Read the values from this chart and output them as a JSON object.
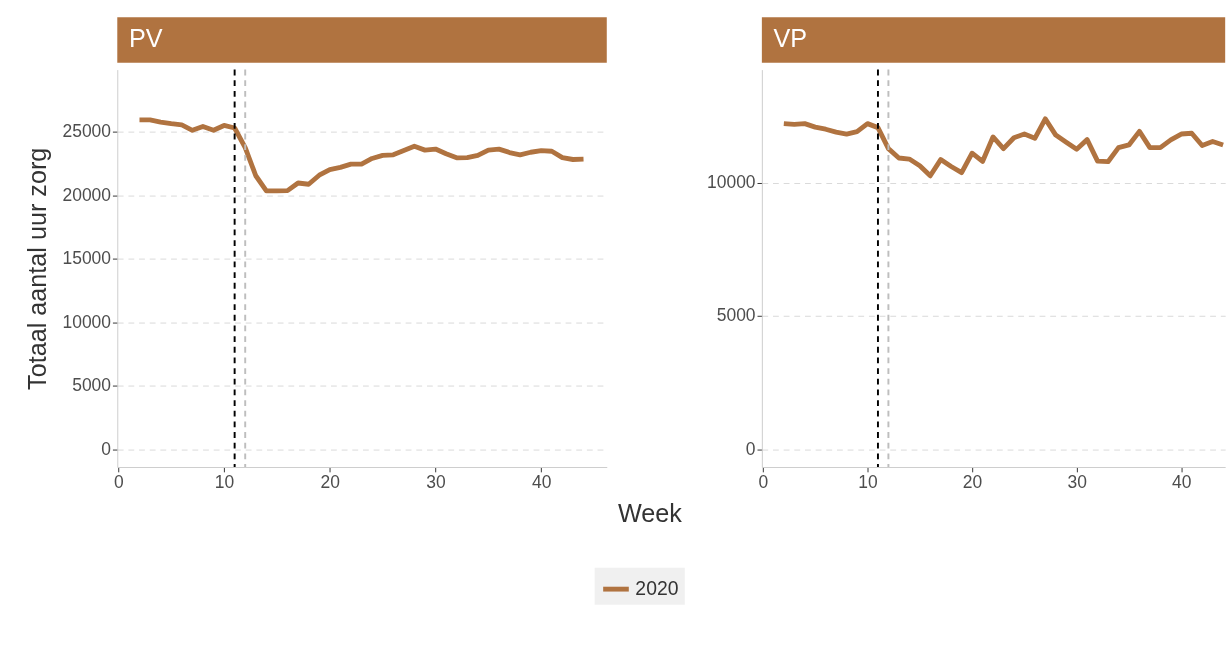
{
  "chart_data": [
    {
      "type": "line",
      "title": "PV",
      "xlabel": "Week",
      "ylabel": "Totaal aantal uur zorg",
      "x": [
        2,
        3,
        4,
        5,
        6,
        7,
        8,
        9,
        10,
        11,
        12,
        13,
        14,
        15,
        16,
        17,
        18,
        19,
        20,
        21,
        22,
        23,
        24,
        25,
        26,
        27,
        28,
        29,
        30,
        31,
        32,
        33,
        34,
        35,
        36,
        37,
        38,
        39,
        40,
        41,
        42,
        43,
        44
      ],
      "series": [
        {
          "name": "2020",
          "color": "#b07340",
          "values": [
            25940,
            25940,
            25770,
            25640,
            25540,
            25120,
            25420,
            25120,
            25500,
            25300,
            23760,
            21540,
            20350,
            20350,
            20370,
            20970,
            20870,
            21580,
            22030,
            22200,
            22450,
            22450,
            22900,
            23140,
            23190,
            23520,
            23860,
            23560,
            23640,
            23270,
            22950,
            22970,
            23140,
            23560,
            23640,
            23370,
            23190,
            23390,
            23520,
            23470,
            22970,
            22820,
            22850
          ]
        }
      ],
      "xlim": [
        -0.1,
        46.2
      ],
      "xticks": [
        0,
        10,
        20,
        30,
        40
      ],
      "ylim": [
        -1400,
        29900
      ],
      "yticks": [
        0,
        5000,
        10000,
        15000,
        20000,
        25000
      ],
      "ref_lines": [
        {
          "axis": "x",
          "value": 11,
          "color": "#000000",
          "line_style": "dashed"
        },
        {
          "axis": "x",
          "value": 12,
          "color": "#bebebe",
          "line_style": "dashed"
        }
      ],
      "grid": "y",
      "legend": "bottom",
      "line_style": "solid"
    },
    {
      "type": "line",
      "title": "VP",
      "x": [
        2,
        3,
        4,
        5,
        6,
        7,
        8,
        9,
        10,
        11,
        12,
        13,
        14,
        15,
        16,
        17,
        18,
        19,
        20,
        21,
        22,
        23,
        24,
        25,
        26,
        27,
        28,
        29,
        30,
        31,
        32,
        33,
        34,
        35,
        36,
        37,
        38,
        39,
        40,
        41,
        42,
        43,
        44
      ],
      "series": [
        {
          "name": "2020",
          "color": "#b07340",
          "values": [
            12230,
            12200,
            12230,
            12100,
            12020,
            11910,
            11840,
            11930,
            12230,
            12080,
            11290,
            10940,
            10900,
            10650,
            10270,
            10880,
            10620,
            10390,
            11120,
            10810,
            11730,
            11290,
            11700,
            11840,
            11680,
            12410,
            11800,
            11530,
            11270,
            11630,
            10820,
            10800,
            11330,
            11430,
            11940,
            11330,
            11330,
            11620,
            11840,
            11870,
            11410,
            11560,
            11430
          ]
        }
      ],
      "xlim": [
        -0.1,
        44.2
      ],
      "xticks": [
        0,
        10,
        20,
        30,
        40
      ],
      "ylim": [
        -670,
        14260
      ],
      "yticks": [
        0,
        5000,
        10000
      ],
      "ref_lines": [
        {
          "axis": "x",
          "value": 11,
          "color": "#000000",
          "line_style": "dashed"
        },
        {
          "axis": "x",
          "value": 12,
          "color": "#bebebe",
          "line_style": "dashed"
        }
      ],
      "grid": "y",
      "legend": "bottom",
      "line_style": "solid"
    }
  ]
}
